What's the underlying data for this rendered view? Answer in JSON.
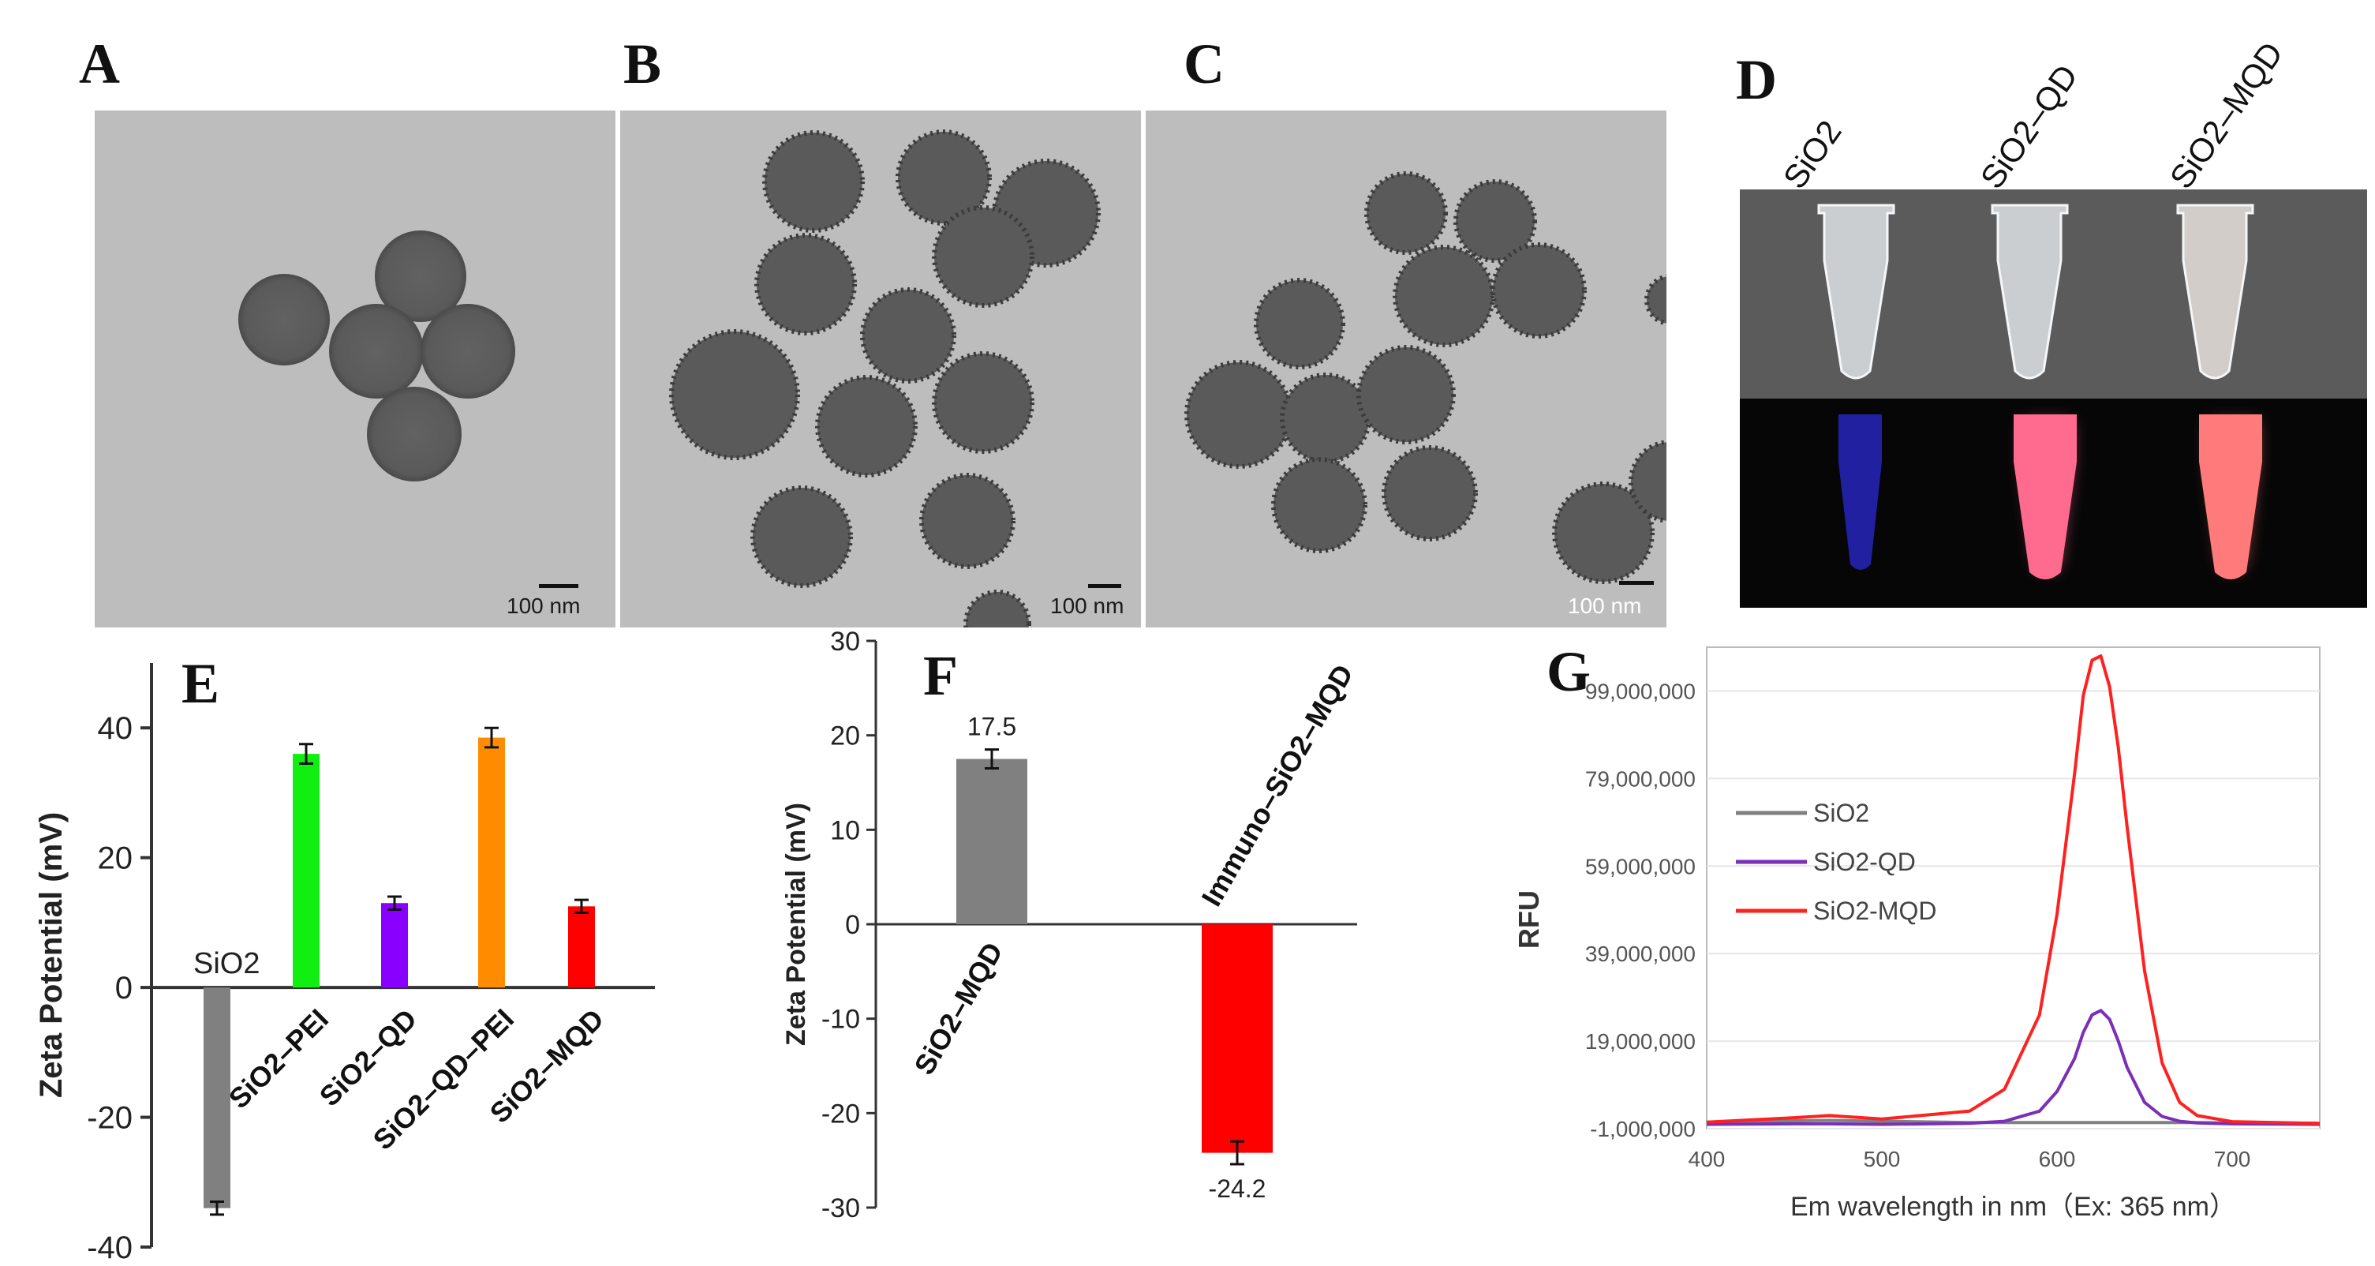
{
  "panels": {
    "A": "A",
    "B": "B",
    "C": "C",
    "D": "D",
    "E": "E",
    "F": "F",
    "G": "G"
  },
  "scale_bars": {
    "A": "100 nm",
    "B": "100 nm",
    "C": "100 nm"
  },
  "colors": {
    "tem_bg": "#bdbdbd",
    "sphere": "#5a5a5a",
    "photo_top": "#5b5b5b",
    "photo_bottom": "#060606",
    "blue_glow": "#2a2ad6",
    "pink_glow": "#ff6b8e",
    "red_glow": "#ff6f6f"
  },
  "panel_d": {
    "tube_labels": [
      "SiO2",
      "SiO2–QD",
      "SiO2–MQD"
    ]
  },
  "chart_data": [
    {
      "id": "E",
      "type": "bar",
      "categories": [
        "SiO2",
        "SiO2–PEI",
        "SiO2–QD",
        "SiO2–QD–PEI",
        "SiO2–MQD"
      ],
      "values": [
        -34,
        36,
        13,
        38.5,
        12.5
      ],
      "errors": [
        1,
        1.5,
        1,
        1.5,
        1
      ],
      "colors": [
        "#808080",
        "#11ee11",
        "#8a00ff",
        "#ff8c00",
        "#ff0000"
      ],
      "ylabel": "Zeta Potential (mV)",
      "ylim": [
        -40,
        50
      ],
      "yticks": [
        -40,
        -20,
        0,
        20,
        40
      ]
    },
    {
      "id": "F",
      "type": "bar",
      "categories": [
        "SiO2–MQD",
        "Immuno–SiO2–MQD"
      ],
      "values": [
        17.5,
        -24.2
      ],
      "value_labels": [
        "17.5",
        "-24.2"
      ],
      "errors": [
        1,
        1.2
      ],
      "colors": [
        "#808080",
        "#ff0000"
      ],
      "ylabel": "Zeta Potential (mV)",
      "ylim": [
        -30,
        30
      ],
      "yticks": [
        -30,
        -20,
        -10,
        0,
        10,
        20,
        30
      ]
    },
    {
      "id": "G",
      "type": "line",
      "xlabel": "Em wavelength in nm（Ex: 365 nm）",
      "ylabel": "RFU",
      "xlim": [
        400,
        750
      ],
      "xticks": [
        400,
        500,
        600,
        700
      ],
      "ylim": [
        -1000000,
        109000000
      ],
      "yticks": [
        -1000000,
        19000000,
        39000000,
        59000000,
        79000000,
        99000000
      ],
      "ytick_labels": [
        "-1,000,000",
        "19,000,000",
        "39,000,000",
        "59,000,000",
        "79,000,000",
        "99,000,000"
      ],
      "legend_position": "upper-left",
      "x": [
        400,
        450,
        470,
        500,
        550,
        570,
        590,
        600,
        610,
        615,
        620,
        625,
        630,
        635,
        640,
        650,
        660,
        670,
        680,
        700,
        750
      ],
      "series": [
        {
          "name": "SiO2",
          "color": "#808080",
          "values": [
            500000,
            800000,
            900000,
            700000,
            400000,
            400000,
            400000,
            400000,
            400000,
            400000,
            400000,
            400000,
            400000,
            400000,
            400000,
            400000,
            400000,
            400000,
            400000,
            300000,
            200000
          ]
        },
        {
          "name": "SiO2-QD",
          "color": "#7a2fb5",
          "values": [
            0,
            100000,
            100000,
            0,
            200000,
            700000,
            3000000,
            7500000,
            15000000,
            21000000,
            25000000,
            26000000,
            24000000,
            19000000,
            13000000,
            5000000,
            1800000,
            700000,
            300000,
            100000,
            0
          ]
        },
        {
          "name": "SiO2-MQD",
          "color": "#ff2020",
          "values": [
            500000,
            1500000,
            2000000,
            1200000,
            3000000,
            8000000,
            25000000,
            48000000,
            80000000,
            98000000,
            106000000,
            107000000,
            100000000,
            86000000,
            68000000,
            35000000,
            14000000,
            5000000,
            2000000,
            600000,
            200000
          ]
        }
      ]
    }
  ]
}
